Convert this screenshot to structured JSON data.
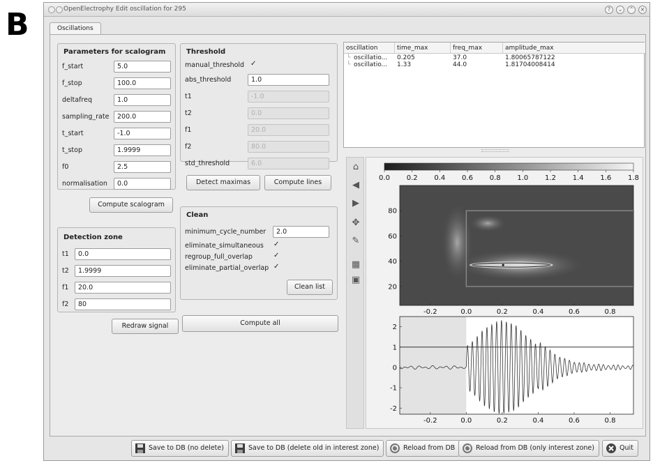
{
  "figure_letter": "B",
  "window": {
    "title": "OpenElectrophy Edit oscillation for 295"
  },
  "tabs": [
    {
      "label": "Oscillations"
    }
  ],
  "scalogram": {
    "title": "Parameters for scalogram",
    "fields": [
      {
        "label": "f_start",
        "value": "5.0"
      },
      {
        "label": "f_stop",
        "value": "100.0"
      },
      {
        "label": "deltafreq",
        "value": "1.0"
      },
      {
        "label": "sampling_rate",
        "value": "200.0"
      },
      {
        "label": "t_start",
        "value": "-1.0"
      },
      {
        "label": "t_stop",
        "value": "1.9999"
      },
      {
        "label": "f0",
        "value": "2.5"
      },
      {
        "label": "normalisation",
        "value": "0.0"
      }
    ],
    "compute_label": "Compute scalogram"
  },
  "threshold": {
    "title": "Threshold",
    "manual_label": "manual_threshold",
    "manual_checked": true,
    "abs_label": "abs_threshold",
    "abs_value": "1.0",
    "fields": [
      {
        "label": "t1",
        "value": "-1.0"
      },
      {
        "label": "t2",
        "value": "0.0"
      },
      {
        "label": "f1",
        "value": "20.0"
      },
      {
        "label": "f2",
        "value": "80.0"
      },
      {
        "label": "std_threshold",
        "value": "6.0"
      }
    ]
  },
  "buttons": {
    "detect_maximas": "Detect maximas",
    "compute_lines": "Compute lines",
    "clean_list": "Clean list",
    "redraw_signal": "Redraw signal",
    "compute_all": "Compute all"
  },
  "clean": {
    "title": "Clean",
    "min_cycle_label": "minimum_cycle_number",
    "min_cycle_value": "2.0",
    "checks": [
      {
        "label": "eliminate_simultaneous",
        "checked": true
      },
      {
        "label": "regroup_full_overlap",
        "checked": true
      },
      {
        "label": "eliminate_partial_overlap",
        "checked": true
      }
    ]
  },
  "detection": {
    "title": "Detection zone",
    "fields": [
      {
        "label": "t1",
        "value": "0.0"
      },
      {
        "label": "t2",
        "value": "1.9999"
      },
      {
        "label": "f1",
        "value": "20.0"
      },
      {
        "label": "f2",
        "value": "80"
      }
    ]
  },
  "table": {
    "columns": [
      "oscillation",
      "time_max",
      "freq_max",
      "amplitude_max"
    ],
    "rows": [
      [
        "oscillatio...",
        "0.205",
        "37.0",
        "1.80065787122"
      ],
      [
        "oscillatio...",
        "1.33",
        "44.0",
        "1.81704008414"
      ]
    ]
  },
  "toolbar_icons": [
    "home-icon",
    "back-icon",
    "forward-icon",
    "pan-icon",
    "zoom-icon",
    "subplots-icon",
    "save-icon"
  ],
  "chart_data": [
    {
      "type": "heatmap",
      "colorbar_ticks": [
        "0.0",
        "0.2",
        "0.4",
        "0.6",
        "0.8",
        "1.0",
        "1.2",
        "1.4",
        "1.6",
        "1.8"
      ],
      "colorbar_range": [
        0,
        1.8
      ],
      "x_ticks": [
        "-0.2",
        "0.0",
        "0.2",
        "0.4",
        "0.6",
        "0.8"
      ],
      "y_ticks": [
        "20",
        "40",
        "60",
        "80"
      ],
      "xlim": [
        -0.37,
        0.93
      ],
      "ylim": [
        5,
        100
      ],
      "detection_zone": {
        "t1": 0.0,
        "t2": 0.93,
        "f1": 20,
        "f2": 80
      },
      "oscillation_peak": {
        "time": 0.205,
        "freq": 37.0
      }
    },
    {
      "type": "line",
      "x_ticks": [
        "-0.2",
        "0.0",
        "0.2",
        "0.4",
        "0.6",
        "0.8"
      ],
      "y_ticks": [
        "2",
        "1",
        "0",
        "-1",
        "-2"
      ],
      "xlim": [
        -0.37,
        0.93
      ],
      "ylim": [
        -2.3,
        2.5
      ],
      "threshold_line": 1.0,
      "signal_onset": 0.0
    }
  ],
  "bottom_buttons": [
    {
      "label": "Save to DB (no delete)",
      "icon": "floppy-icon"
    },
    {
      "label": "Save to DB (delete old in interest zone)",
      "icon": "floppy-icon"
    },
    {
      "label": "Reload from DB",
      "icon": "reload-icon"
    },
    {
      "label": "Reload from DB (only interest zone)",
      "icon": "reload-icon"
    },
    {
      "label": "Quit",
      "icon": "quit-icon"
    }
  ]
}
